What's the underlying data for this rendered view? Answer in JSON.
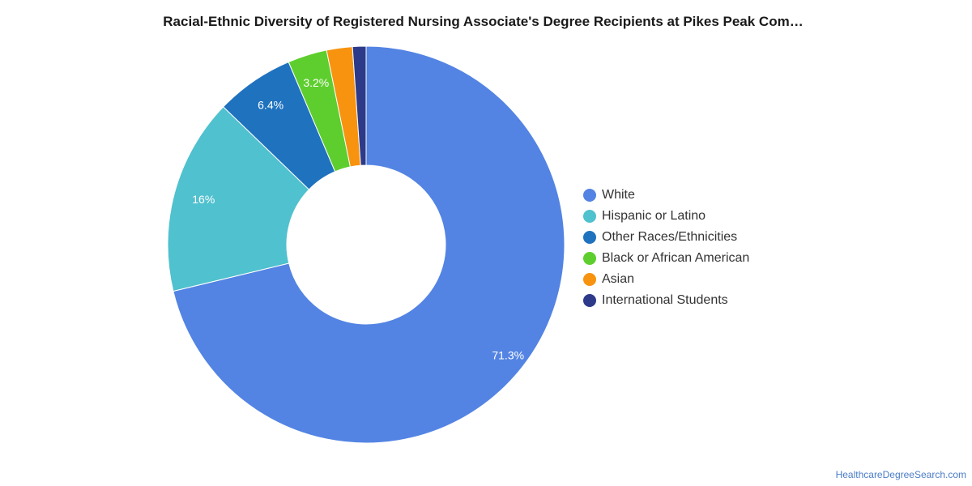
{
  "chart_data": {
    "type": "pie",
    "title": "Racial-Ethnic Diversity of Registered Nursing Associate's Degree Recipients at Pikes Peak Com…",
    "donut": true,
    "categories": [
      "White",
      "Hispanic or Latino",
      "Other Races/Ethnicities",
      "Black or African American",
      "Asian",
      "International Students"
    ],
    "values": [
      71.3,
      16,
      6.4,
      3.2,
      2.1,
      1.1
    ],
    "data_labels": [
      "71.3%",
      "16%",
      "6.4%",
      "3.2%",
      "",
      ""
    ],
    "colors": [
      "#5384e3",
      "#50c1ce",
      "#1f72be",
      "#5ece2e",
      "#f7930f",
      "#2d3a8a"
    ],
    "legend_position": "right"
  },
  "footer": {
    "source": "HealthcareDegreeSearch.com"
  }
}
